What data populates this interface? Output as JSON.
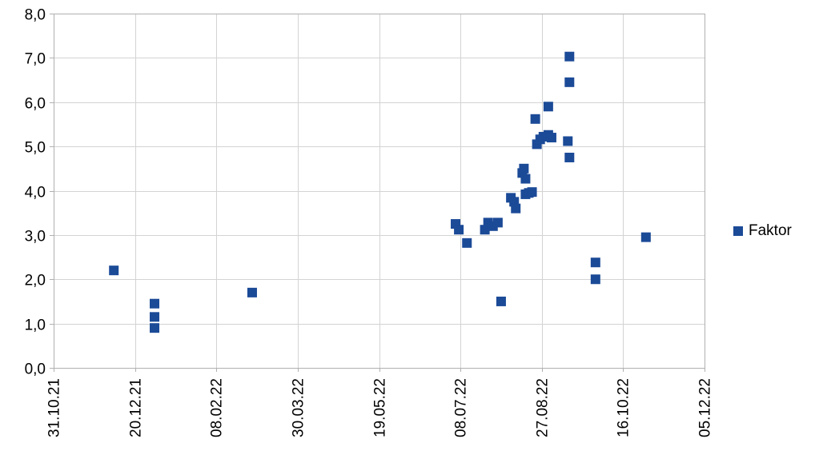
{
  "chart_data": {
    "type": "scatter",
    "title": "",
    "xlabel": "",
    "ylabel": "",
    "grid": true,
    "legend_position": "right",
    "x_ticks": [
      "31.10.21",
      "20.12.21",
      "08.02.22",
      "30.03.22",
      "19.05.22",
      "08.07.22",
      "27.08.22",
      "16.10.22",
      "05.12.22"
    ],
    "y_tick_labels": [
      "0,0",
      "1,0",
      "2,0",
      "3,0",
      "4,0",
      "5,0",
      "6,0",
      "7,0",
      "8,0"
    ],
    "y_min": 0,
    "y_max": 8,
    "grid_color": "#d3d3d3",
    "axis_color": "#b0b0b0",
    "text_color": "#000000",
    "series": [
      {
        "name": "Faktor",
        "color": "#1b4a97",
        "marker": "square",
        "points": [
          [
            "07.12.21",
            2.2
          ],
          [
            "01.01.22",
            1.45
          ],
          [
            "01.01.22",
            1.15
          ],
          [
            "01.01.22",
            0.9
          ],
          [
            "02.03.22",
            1.7
          ],
          [
            "05.07.22",
            3.25
          ],
          [
            "07.07.22",
            3.12
          ],
          [
            "12.07.22",
            2.82
          ],
          [
            "23.07.22",
            3.12
          ],
          [
            "25.07.22",
            3.28
          ],
          [
            "28.07.22",
            3.2
          ],
          [
            "31.07.22",
            3.28
          ],
          [
            "02.08.22",
            1.5
          ],
          [
            "08.08.22",
            3.84
          ],
          [
            "10.08.22",
            3.75
          ],
          [
            "11.08.22",
            3.6
          ],
          [
            "15.08.22",
            4.4
          ],
          [
            "16.08.22",
            4.5
          ],
          [
            "17.08.22",
            4.27
          ],
          [
            "17.08.22",
            3.92
          ],
          [
            "19.08.22",
            3.95
          ],
          [
            "21.08.22",
            3.97
          ],
          [
            "23.08.22",
            5.62
          ],
          [
            "24.08.22",
            5.05
          ],
          [
            "26.08.22",
            5.16
          ],
          [
            "28.08.22",
            5.22
          ],
          [
            "31.08.22",
            5.26
          ],
          [
            "02.09.22",
            5.2
          ],
          [
            "31.08.22",
            5.9
          ],
          [
            "12.09.22",
            5.12
          ],
          [
            "13.09.22",
            7.03
          ],
          [
            "13.09.22",
            6.45
          ],
          [
            "13.09.22",
            4.75
          ],
          [
            "29.09.22",
            2.38
          ],
          [
            "29.09.22",
            2.0
          ],
          [
            "30.10.22",
            2.95
          ]
        ]
      }
    ]
  },
  "legend": {
    "label": "Faktor"
  }
}
